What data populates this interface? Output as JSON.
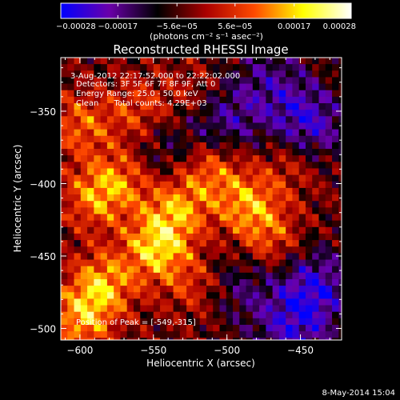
{
  "chart_data": {
    "type": "heatmap",
    "title": "Reconstructed RHESSI Image",
    "xlabel": "Heliocentric X (arcsec)",
    "ylabel": "Heliocentric Y (arcsec)",
    "xlim": [
      -613,
      -422
    ],
    "ylim": [
      -508,
      -313
    ],
    "x_ticks": [
      -600,
      -550,
      -500,
      -450
    ],
    "y_ticks": [
      -350,
      -400,
      -450,
      -500
    ],
    "colorbar": {
      "range": [
        -0.00028,
        0.00028
      ],
      "tick_values": [
        -0.00028,
        -0.00017,
        -5.6e-05,
        5.6e-05,
        0.00017,
        0.00028
      ],
      "tick_labels": [
        "-0.00028",
        "-0.00017",
        "-5.6e-05",
        "5.6e-05",
        "0.00017",
        "0.00028"
      ],
      "units_label": "(photons cm⁻² s⁻¹ asec⁻²)",
      "colors": [
        "#0000ff",
        "#6a00aa",
        "#000000",
        "#aa0000",
        "#ff4a00",
        "#ffff00",
        "#ffffff"
      ]
    },
    "info_lines": [
      "3-Aug-2012 22:17:52.000 to 22:22:02.000",
      "Detectors: 3F 5F 6F 7F 8F 9F, Att 0",
      "Energy Range: 25.0 - 50.0 keV",
      "Clean      Total counts: 4.29E+03"
    ],
    "peak_label": "Position of Peak = [-549,-315]",
    "peak": [
      -549,
      -315
    ],
    "timestamp": "8-May-2014 15:04",
    "grid": false
  }
}
